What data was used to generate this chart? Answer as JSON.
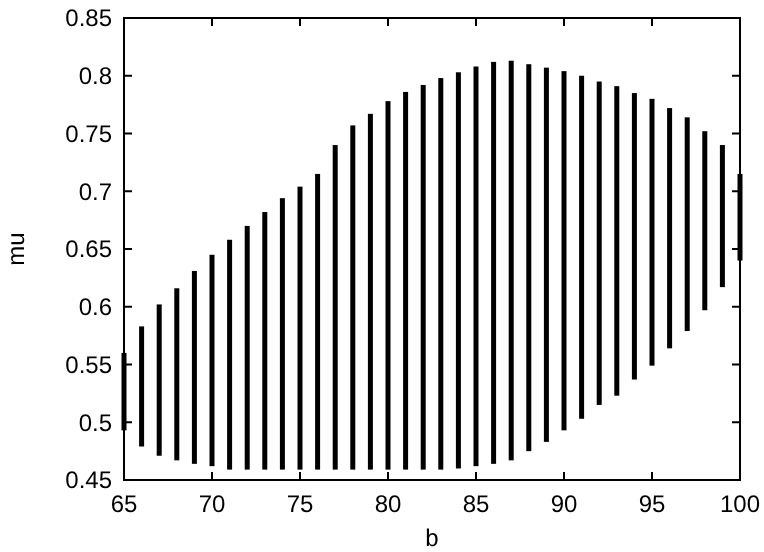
{
  "chart_data": {
    "type": "bar",
    "xlabel": "b",
    "ylabel": "mu",
    "x": [
      65,
      66,
      67,
      68,
      69,
      70,
      71,
      72,
      73,
      74,
      75,
      76,
      77,
      78,
      79,
      80,
      81,
      82,
      83,
      84,
      85,
      86,
      87,
      88,
      89,
      90,
      91,
      92,
      93,
      94,
      95,
      96,
      97,
      98,
      99,
      100
    ],
    "base": [
      0.493,
      0.479,
      0.471,
      0.467,
      0.464,
      0.462,
      0.459,
      0.459,
      0.459,
      0.459,
      0.459,
      0.459,
      0.459,
      0.459,
      0.459,
      0.459,
      0.459,
      0.459,
      0.459,
      0.46,
      0.462,
      0.464,
      0.467,
      0.475,
      0.483,
      0.493,
      0.503,
      0.515,
      0.523,
      0.537,
      0.549,
      0.564,
      0.579,
      0.597,
      0.617,
      0.64
    ],
    "values": [
      0.067,
      0.104,
      0.131,
      0.149,
      0.167,
      0.183,
      0.199,
      0.211,
      0.223,
      0.235,
      0.245,
      0.256,
      0.281,
      0.298,
      0.308,
      0.319,
      0.327,
      0.333,
      0.339,
      0.343,
      0.346,
      0.348,
      0.346,
      0.335,
      0.324,
      0.311,
      0.297,
      0.28,
      0.268,
      0.248,
      0.231,
      0.208,
      0.185,
      0.155,
      0.123,
      0.075
    ],
    "color": "#000000",
    "xlim": [
      65,
      100
    ],
    "xticks": [
      65,
      70,
      75,
      80,
      85,
      90,
      95,
      100
    ],
    "ylim": [
      0.45,
      0.85
    ],
    "yticks": [
      0.45,
      0.5,
      0.55,
      0.6,
      0.65,
      0.7,
      0.75,
      0.8,
      0.85
    ]
  }
}
